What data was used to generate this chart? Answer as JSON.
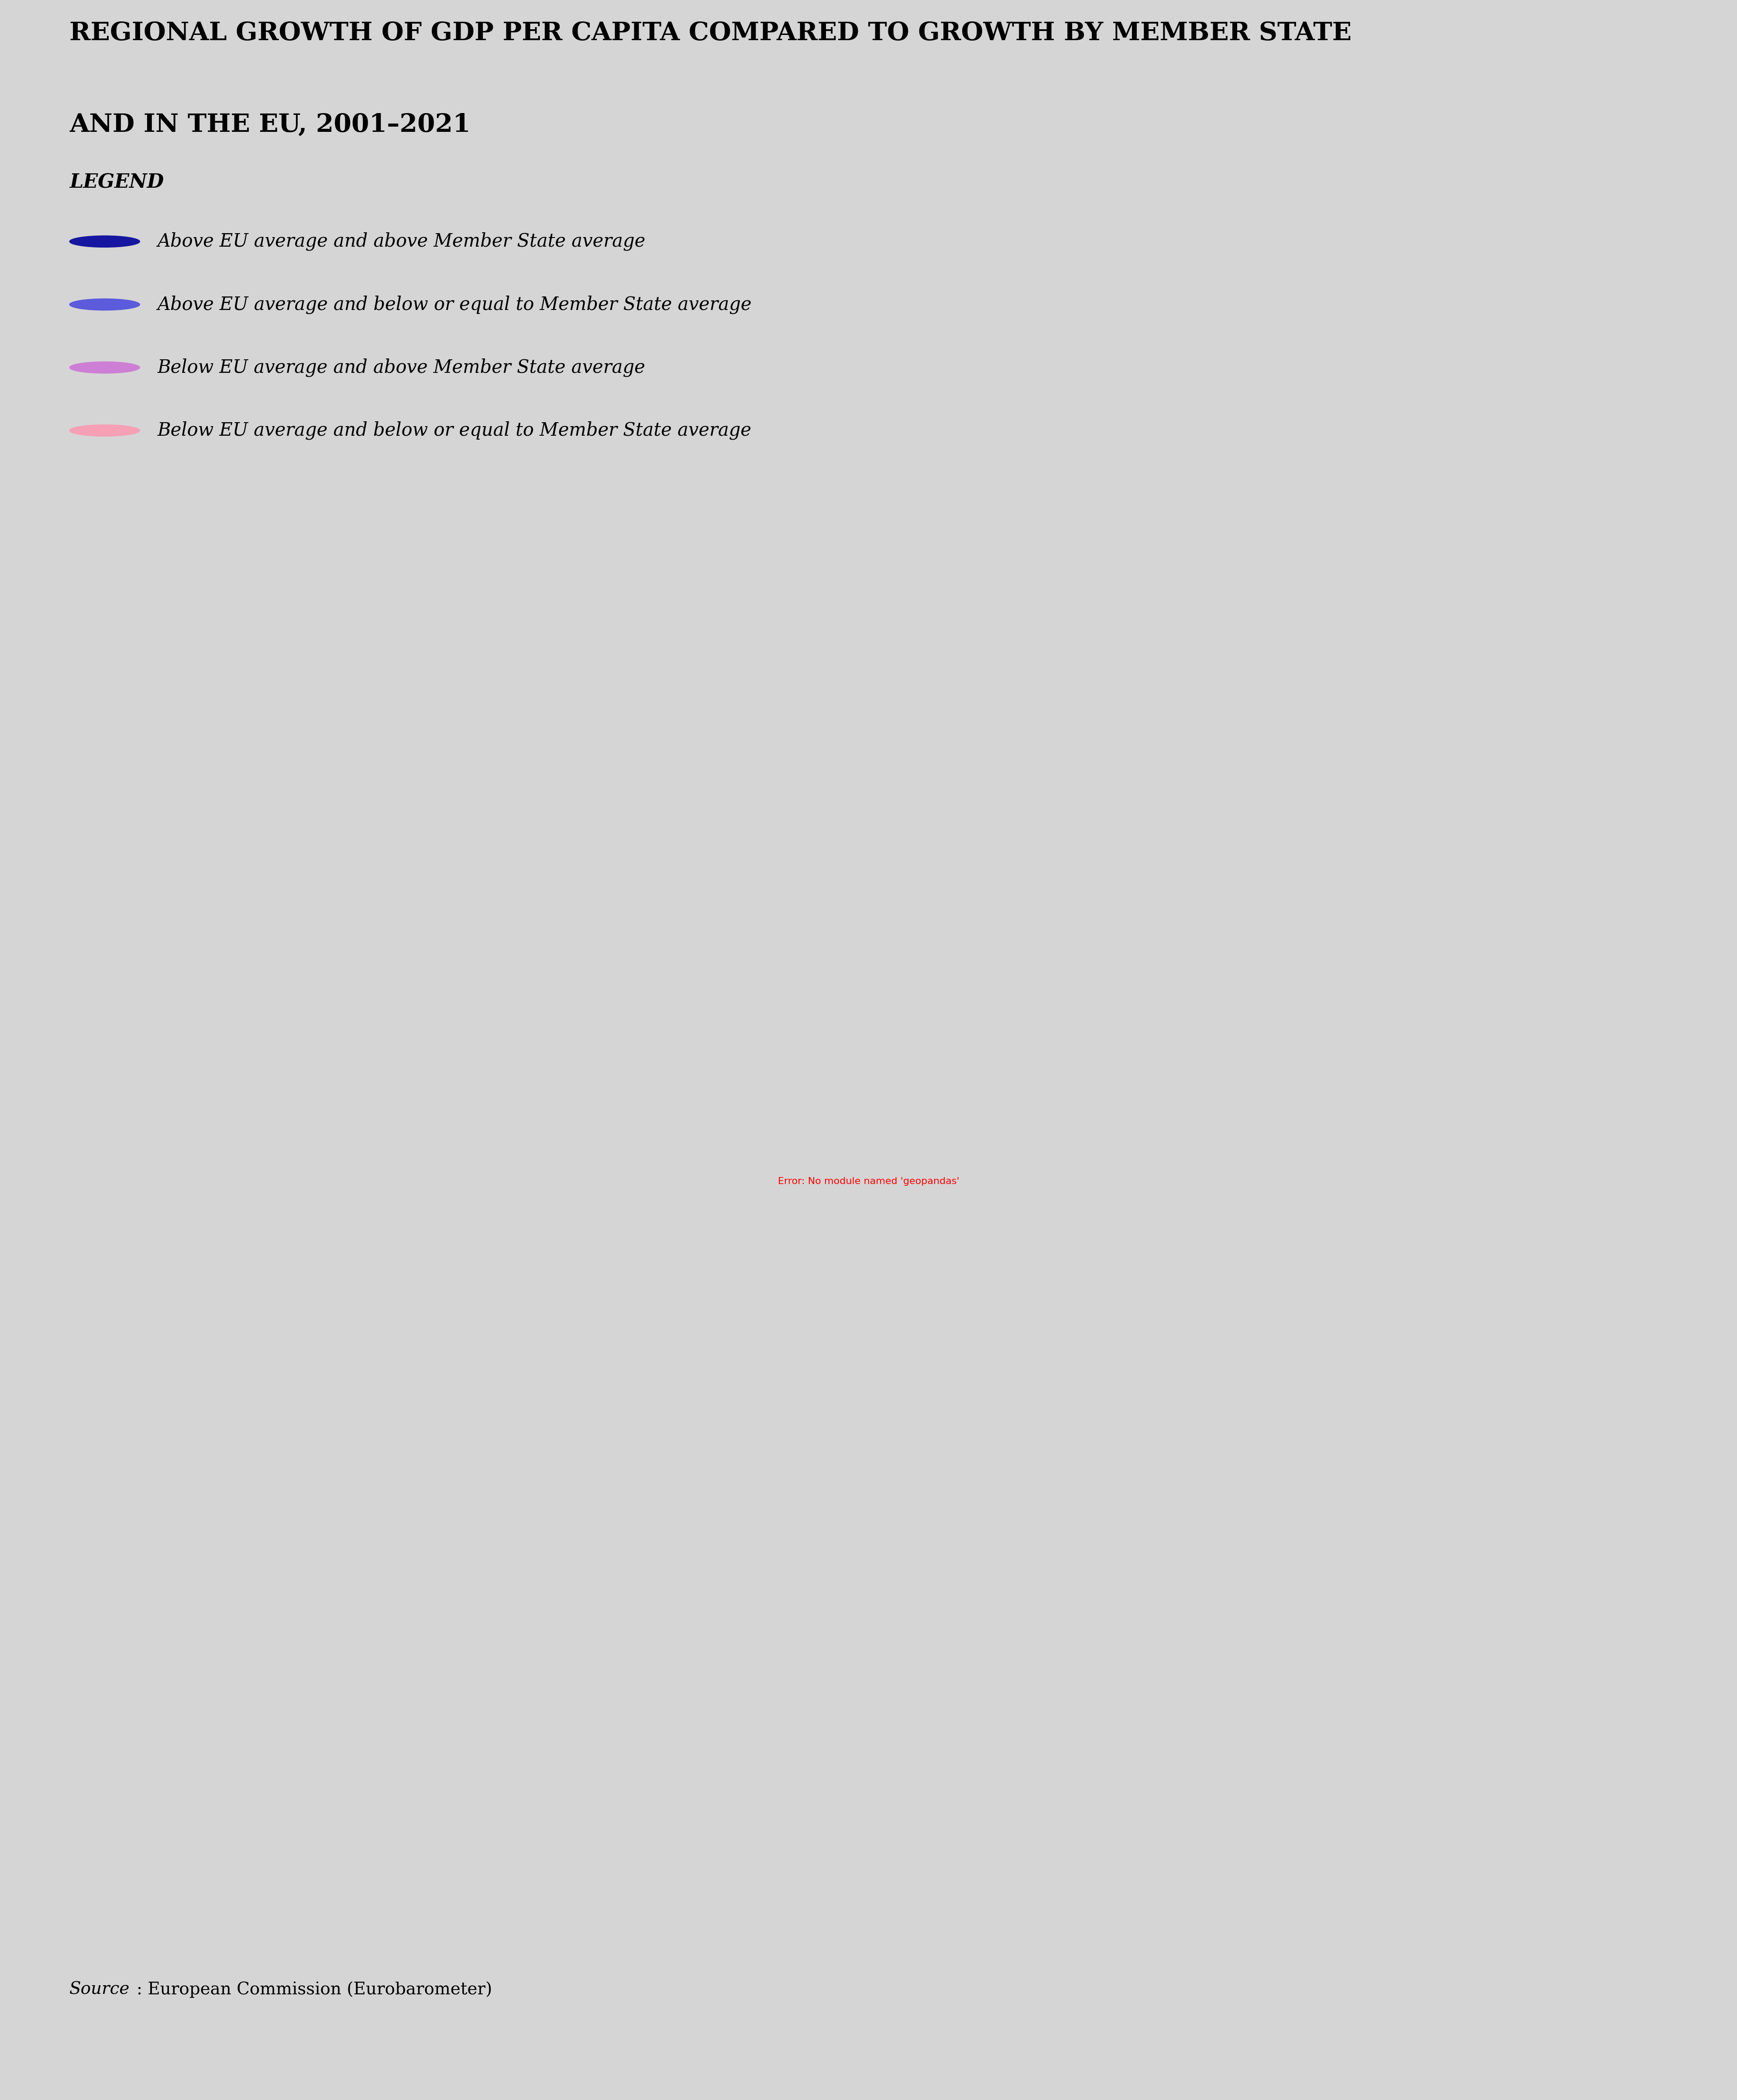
{
  "title_line1": "REGIONAL GROWTH OF GDP PER CAPITA COMPARED TO GROWTH BY MEMBER STATE",
  "title_line2": "AND IN THE EU, 2001–2021",
  "legend_title": "LEGEND",
  "legend_entries": [
    {
      "color": "#1616a0",
      "label": "Above EU average and above Member State average"
    },
    {
      "color": "#5b5bdb",
      "label": "Above EU average and below or equal to Member State average"
    },
    {
      "color": "#cc7fd4",
      "label": "Below EU average and above Member State average"
    },
    {
      "color": "#f5a0b5",
      "label": "Below EU average and below or equal to Member State average"
    }
  ],
  "source_italic": "Source",
  "source_rest": ": European Commission (Eurobarometer)",
  "background_color": "#d5d5d5",
  "non_eu_color": "#d5d5d5",
  "non_eu_outline": "#b0b0b0",
  "eu_outline": "#ffffff",
  "title_fontsize": 42,
  "legend_title_fontsize": 32,
  "legend_fontsize": 30,
  "source_fontsize": 28,
  "country_colors": {
    "Finland": "#1616a0",
    "Estonia": "#1616a0",
    "Latvia": "#1616a0",
    "Lithuania": "#1616a0",
    "Poland": "#1616a0",
    "Czechia": "#1616a0",
    "Slovakia": "#1616a0",
    "Hungary": "#1616a0",
    "Romania": "#1616a0",
    "Bulgaria": "#1616a0",
    "Croatia": "#1616a0",
    "Austria": "#1616a0",
    "Germany": "#1616a0",
    "Ireland": "#1616a0",
    "Cyprus": "#1616a0",
    "Malta": "#1616a0",
    "Slovenia": "#1616a0",
    "Sweden": "#5b5bdb",
    "Denmark": "#5b5bdb",
    "Belgium": "#5b5bdb",
    "Netherlands": "#5b5bdb",
    "Luxembourg": "#5b5bdb",
    "France": "#cc7fd4",
    "Spain": "#cc7fd4",
    "Portugal": "#cc7fd4",
    "Italy": "#f5a0b5",
    "Greece": "#f5a0b5"
  },
  "map_xlim": [
    -26,
    44
  ],
  "map_ylim": [
    33,
    71.5
  ]
}
